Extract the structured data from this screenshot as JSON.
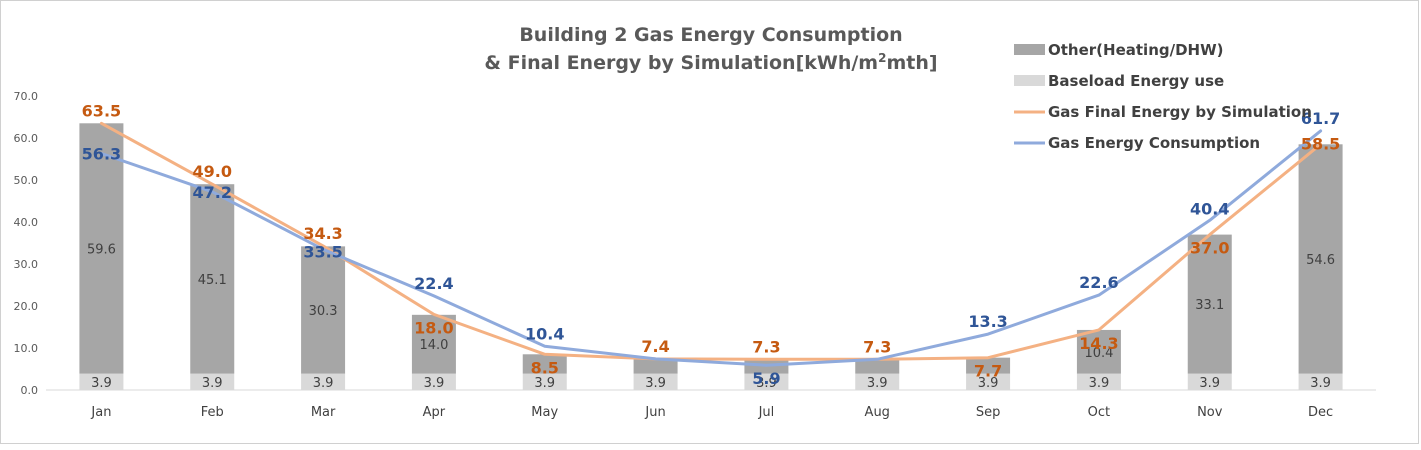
{
  "chart_data": {
    "type": "bar",
    "stacked": true,
    "title_line1": "Building 2 Gas Energy Consumption",
    "title_line2_pre": "& Final Energy by Simulation[kWh/m",
    "title_line2_sup": "2",
    "title_line2_post": "mth]",
    "categories": [
      "Jan",
      "Feb",
      "Mar",
      "Apr",
      "May",
      "Jun",
      "Jul",
      "Aug",
      "Sep",
      "Oct",
      "Nov",
      "Dec"
    ],
    "ylim": [
      0,
      70
    ],
    "yticks": [
      "0.0",
      "10.0",
      "20.0",
      "30.0",
      "40.0",
      "50.0",
      "60.0",
      "70.0"
    ],
    "grid": false,
    "legend_position": "top-right",
    "series": [
      {
        "name": "Baseload Energy use",
        "kind": "bar",
        "color": "#d9d9d9",
        "values": [
          3.9,
          3.9,
          3.9,
          3.9,
          3.9,
          3.9,
          3.9,
          3.9,
          3.9,
          3.9,
          3.9,
          3.9
        ],
        "labels": [
          "3.9",
          "3.9",
          "3.9",
          "3.9",
          "3.9",
          "3.9",
          "3.9",
          "3.9",
          "3.9",
          "3.9",
          "3.9",
          "3.9"
        ]
      },
      {
        "name": "Other(Heating/DHW)",
        "kind": "bar",
        "color": "#a6a6a6",
        "values": [
          59.6,
          45.1,
          30.3,
          14.0,
          4.6,
          3.5,
          3.4,
          3.4,
          3.8,
          10.4,
          33.1,
          54.6
        ],
        "labels": [
          "59.6",
          "45.1",
          "30.3",
          "14.0",
          "",
          "",
          "",
          "",
          "",
          "10.4",
          "33.1",
          "54.6"
        ]
      },
      {
        "name": "Gas Final Energy by Simulation",
        "kind": "line",
        "color": "#f4b183",
        "values": [
          63.5,
          49.0,
          34.3,
          18.0,
          8.5,
          7.4,
          7.3,
          7.3,
          7.7,
          14.3,
          37.0,
          58.5
        ],
        "labels": [
          "63.5",
          "49.0",
          "34.3",
          "18.0",
          "8.5",
          "7.4",
          "7.3",
          "7.3",
          "7.7",
          "14.3",
          "37.0",
          "58.5"
        ]
      },
      {
        "name": "Gas Energy Consumption",
        "kind": "line",
        "color": "#8faadc",
        "values": [
          56.3,
          47.2,
          33.5,
          22.4,
          10.4,
          7.4,
          5.9,
          7.3,
          13.3,
          22.6,
          40.4,
          61.7
        ],
        "labels": [
          "56.3",
          "47.2",
          "33.5",
          "22.4",
          "10.4",
          "",
          "5.9",
          "",
          "13.3",
          "22.6",
          "40.4",
          "61.7"
        ]
      }
    ]
  }
}
